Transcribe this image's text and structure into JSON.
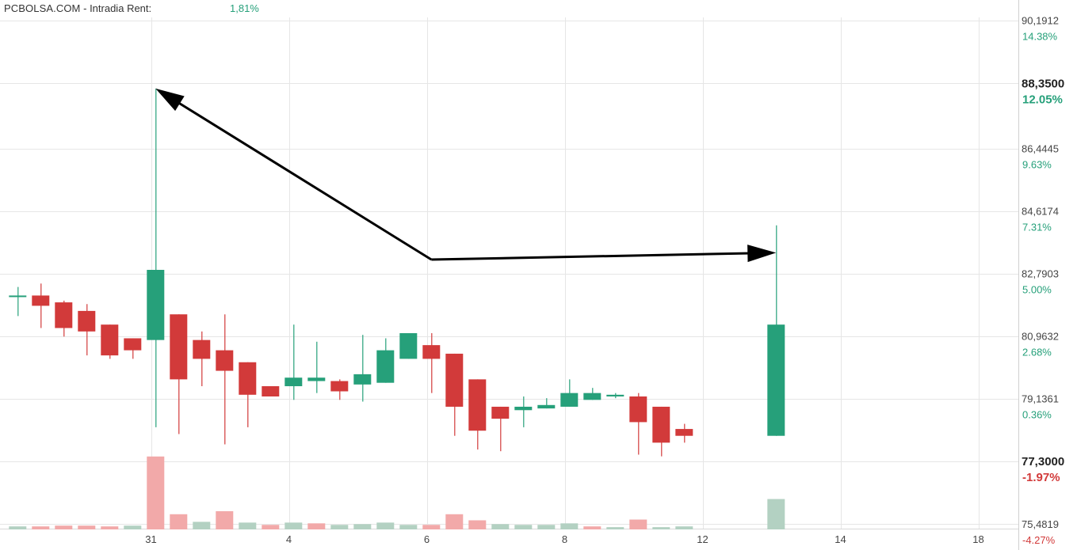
{
  "header": {
    "brand": "PCBOLSA.COM",
    "separator": "-",
    "mode": "Intradia",
    "rent_label": "Rent:",
    "rent_value": "1,81%"
  },
  "colors": {
    "up": "#26a07a",
    "down": "#d23a3a",
    "vol_up": "#b3d1c2",
    "vol_down": "#f2a9a9",
    "grid": "#e6e6e6",
    "arrow": "#000000",
    "pct_positive": "#26a07a",
    "pct_negative": "#d23a3a"
  },
  "chart_data": {
    "type": "candlestick",
    "price_labels": [
      "90,1912",
      "88,3500",
      "86,4445",
      "84,6174",
      "82,7903",
      "80,9632",
      "79,1361",
      "77,3000",
      "75,4819"
    ],
    "pct_labels": [
      "14.38%",
      "12.05%",
      "9.63%",
      "7.31%",
      "5.00%",
      "2.68%",
      "0.36%",
      "-1.97%",
      "-4.27%"
    ],
    "highlighted_levels": [
      "88,3500",
      "77,3000"
    ],
    "ylim": [
      75.43,
      90.37
    ],
    "x_ticks": [
      {
        "label": "31",
        "pos": 6
      },
      {
        "label": "4",
        "pos": 12
      },
      {
        "label": "6",
        "pos": 18
      },
      {
        "label": "8",
        "pos": 24
      },
      {
        "label": "12",
        "pos": 30
      },
      {
        "label": "14",
        "pos": 36
      },
      {
        "label": "18",
        "pos": 42
      }
    ],
    "xlim": [
      0,
      47
    ],
    "candles": [
      {
        "x": 0.2,
        "open": 82.15,
        "high": 82.4,
        "low": 81.55,
        "close": 82.15
      },
      {
        "x": 1.2,
        "open": 82.15,
        "high": 82.5,
        "low": 81.2,
        "close": 81.85
      },
      {
        "x": 2.2,
        "open": 81.95,
        "high": 82.0,
        "low": 80.95,
        "close": 81.2
      },
      {
        "x": 3.2,
        "open": 81.7,
        "high": 81.9,
        "low": 80.4,
        "close": 81.1
      },
      {
        "x": 4.2,
        "open": 81.3,
        "high": 81.3,
        "low": 80.3,
        "close": 80.4
      },
      {
        "x": 5.2,
        "open": 80.9,
        "high": 80.9,
        "low": 80.3,
        "close": 80.55
      },
      {
        "x": 6.2,
        "open": 80.85,
        "high": 88.2,
        "low": 78.3,
        "close": 82.9
      },
      {
        "x": 7.2,
        "open": 81.6,
        "high": 81.6,
        "low": 78.1,
        "close": 79.7
      },
      {
        "x": 8.2,
        "open": 80.85,
        "high": 81.1,
        "low": 79.5,
        "close": 80.3
      },
      {
        "x": 9.2,
        "open": 80.55,
        "high": 81.6,
        "low": 77.8,
        "close": 79.95
      },
      {
        "x": 10.2,
        "open": 80.2,
        "high": 80.2,
        "low": 78.3,
        "close": 79.25
      },
      {
        "x": 11.2,
        "open": 79.5,
        "high": 79.5,
        "low": 79.25,
        "close": 79.2
      },
      {
        "x": 12.2,
        "open": 79.5,
        "high": 81.3,
        "low": 79.1,
        "close": 79.75
      },
      {
        "x": 13.2,
        "open": 79.65,
        "high": 80.8,
        "low": 79.3,
        "close": 79.75
      },
      {
        "x": 14.2,
        "open": 79.65,
        "high": 79.7,
        "low": 79.1,
        "close": 79.35
      },
      {
        "x": 15.2,
        "open": 79.55,
        "high": 81.0,
        "low": 79.05,
        "close": 79.85
      },
      {
        "x": 16.2,
        "open": 79.6,
        "high": 80.9,
        "low": 79.6,
        "close": 80.55
      },
      {
        "x": 17.2,
        "open": 80.3,
        "high": 81.05,
        "low": 80.3,
        "close": 81.05
      },
      {
        "x": 18.2,
        "open": 80.7,
        "high": 81.05,
        "low": 79.3,
        "close": 80.3
      },
      {
        "x": 19.2,
        "open": 80.45,
        "high": 80.45,
        "low": 78.05,
        "close": 78.9
      },
      {
        "x": 20.2,
        "open": 79.7,
        "high": 79.7,
        "low": 77.65,
        "close": 78.2
      },
      {
        "x": 21.2,
        "open": 78.9,
        "high": 78.9,
        "low": 77.6,
        "close": 78.55
      },
      {
        "x": 22.2,
        "open": 78.8,
        "high": 79.2,
        "low": 78.3,
        "close": 78.9
      },
      {
        "x": 23.2,
        "open": 78.85,
        "high": 79.15,
        "low": 78.85,
        "close": 78.95
      },
      {
        "x": 24.2,
        "open": 78.9,
        "high": 79.7,
        "low": 78.9,
        "close": 79.3
      },
      {
        "x": 25.2,
        "open": 79.1,
        "high": 79.45,
        "low": 79.1,
        "close": 79.3
      },
      {
        "x": 26.2,
        "open": 79.2,
        "high": 79.3,
        "low": 79.15,
        "close": 79.25
      },
      {
        "x": 27.2,
        "open": 79.2,
        "high": 79.3,
        "low": 77.5,
        "close": 78.45
      },
      {
        "x": 28.2,
        "open": 78.9,
        "high": 78.9,
        "low": 77.45,
        "close": 77.85
      },
      {
        "x": 29.2,
        "open": 78.25,
        "high": 78.4,
        "low": 77.85,
        "close": 78.05
      },
      {
        "x": 33.2,
        "open": 78.05,
        "high": 84.2,
        "low": 78.05,
        "close": 81.3
      }
    ],
    "volume": [
      {
        "x": 0.2,
        "v": 4,
        "dir": "up"
      },
      {
        "x": 1.2,
        "v": 4,
        "dir": "down"
      },
      {
        "x": 2.2,
        "v": 5,
        "dir": "down"
      },
      {
        "x": 3.2,
        "v": 5,
        "dir": "down"
      },
      {
        "x": 4.2,
        "v": 4,
        "dir": "down"
      },
      {
        "x": 5.2,
        "v": 5,
        "dir": "up"
      },
      {
        "x": 6.2,
        "v": 96,
        "dir": "down"
      },
      {
        "x": 7.2,
        "v": 20,
        "dir": "down"
      },
      {
        "x": 8.2,
        "v": 10,
        "dir": "up"
      },
      {
        "x": 9.2,
        "v": 24,
        "dir": "down"
      },
      {
        "x": 10.2,
        "v": 9,
        "dir": "up"
      },
      {
        "x": 11.2,
        "v": 6,
        "dir": "down"
      },
      {
        "x": 12.2,
        "v": 9,
        "dir": "up"
      },
      {
        "x": 13.2,
        "v": 8,
        "dir": "down"
      },
      {
        "x": 14.2,
        "v": 6,
        "dir": "up"
      },
      {
        "x": 15.2,
        "v": 7,
        "dir": "up"
      },
      {
        "x": 16.2,
        "v": 9,
        "dir": "up"
      },
      {
        "x": 17.2,
        "v": 6,
        "dir": "up"
      },
      {
        "x": 18.2,
        "v": 6,
        "dir": "down"
      },
      {
        "x": 19.2,
        "v": 20,
        "dir": "down"
      },
      {
        "x": 20.2,
        "v": 12,
        "dir": "down"
      },
      {
        "x": 21.2,
        "v": 7,
        "dir": "up"
      },
      {
        "x": 22.2,
        "v": 6,
        "dir": "up"
      },
      {
        "x": 23.2,
        "v": 6,
        "dir": "up"
      },
      {
        "x": 24.2,
        "v": 8,
        "dir": "up"
      },
      {
        "x": 25.2,
        "v": 4,
        "dir": "down"
      },
      {
        "x": 26.2,
        "v": 3,
        "dir": "up"
      },
      {
        "x": 27.2,
        "v": 13,
        "dir": "down"
      },
      {
        "x": 28.2,
        "v": 3,
        "dir": "up"
      },
      {
        "x": 29.2,
        "v": 4,
        "dir": "up"
      },
      {
        "x": 33.2,
        "v": 40,
        "dir": "up"
      }
    ],
    "volume_max": 100,
    "annotations": [
      {
        "type": "arrow",
        "from": {
          "x": 18.2,
          "price": 83.2
        },
        "to": {
          "x": 6.2,
          "price": 88.2
        }
      },
      {
        "type": "arrow",
        "from": {
          "x": 18.2,
          "price": 83.2
        },
        "to": {
          "x": 33.2,
          "price": 83.4
        }
      }
    ]
  }
}
